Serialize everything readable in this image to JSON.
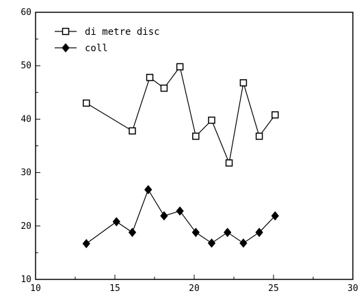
{
  "chart_data": {
    "type": "line",
    "title": "",
    "xlabel": "",
    "ylabel": "",
    "xlim": [
      10,
      30
    ],
    "ylim": [
      10,
      60
    ],
    "x_ticks": [
      10,
      15,
      20,
      25,
      30
    ],
    "y_ticks": [
      10,
      20,
      30,
      40,
      50,
      60
    ],
    "grid": false,
    "legend_position": "top-left",
    "series": [
      {
        "name": "di metre disc",
        "marker": "open-square",
        "color": "#000000",
        "x": [
          13.2,
          16.1,
          17.2,
          18.1,
          19.1,
          20.1,
          21.1,
          22.2,
          23.1,
          24.1,
          25.1
        ],
        "y": [
          43,
          37.8,
          47.8,
          45.8,
          49.8,
          36.8,
          39.8,
          31.8,
          46.8,
          36.8,
          40.8
        ]
      },
      {
        "name": "coll",
        "marker": "filled-diamond",
        "color": "#000000",
        "x": [
          13.2,
          15.1,
          16.1,
          17.1,
          18.1,
          19.1,
          20.1,
          21.1,
          22.1,
          23.1,
          24.1,
          25.1
        ],
        "y": [
          16.7,
          20.8,
          18.8,
          26.8,
          21.9,
          22.8,
          18.8,
          16.8,
          18.8,
          16.8,
          18.8,
          21.9
        ]
      }
    ]
  }
}
